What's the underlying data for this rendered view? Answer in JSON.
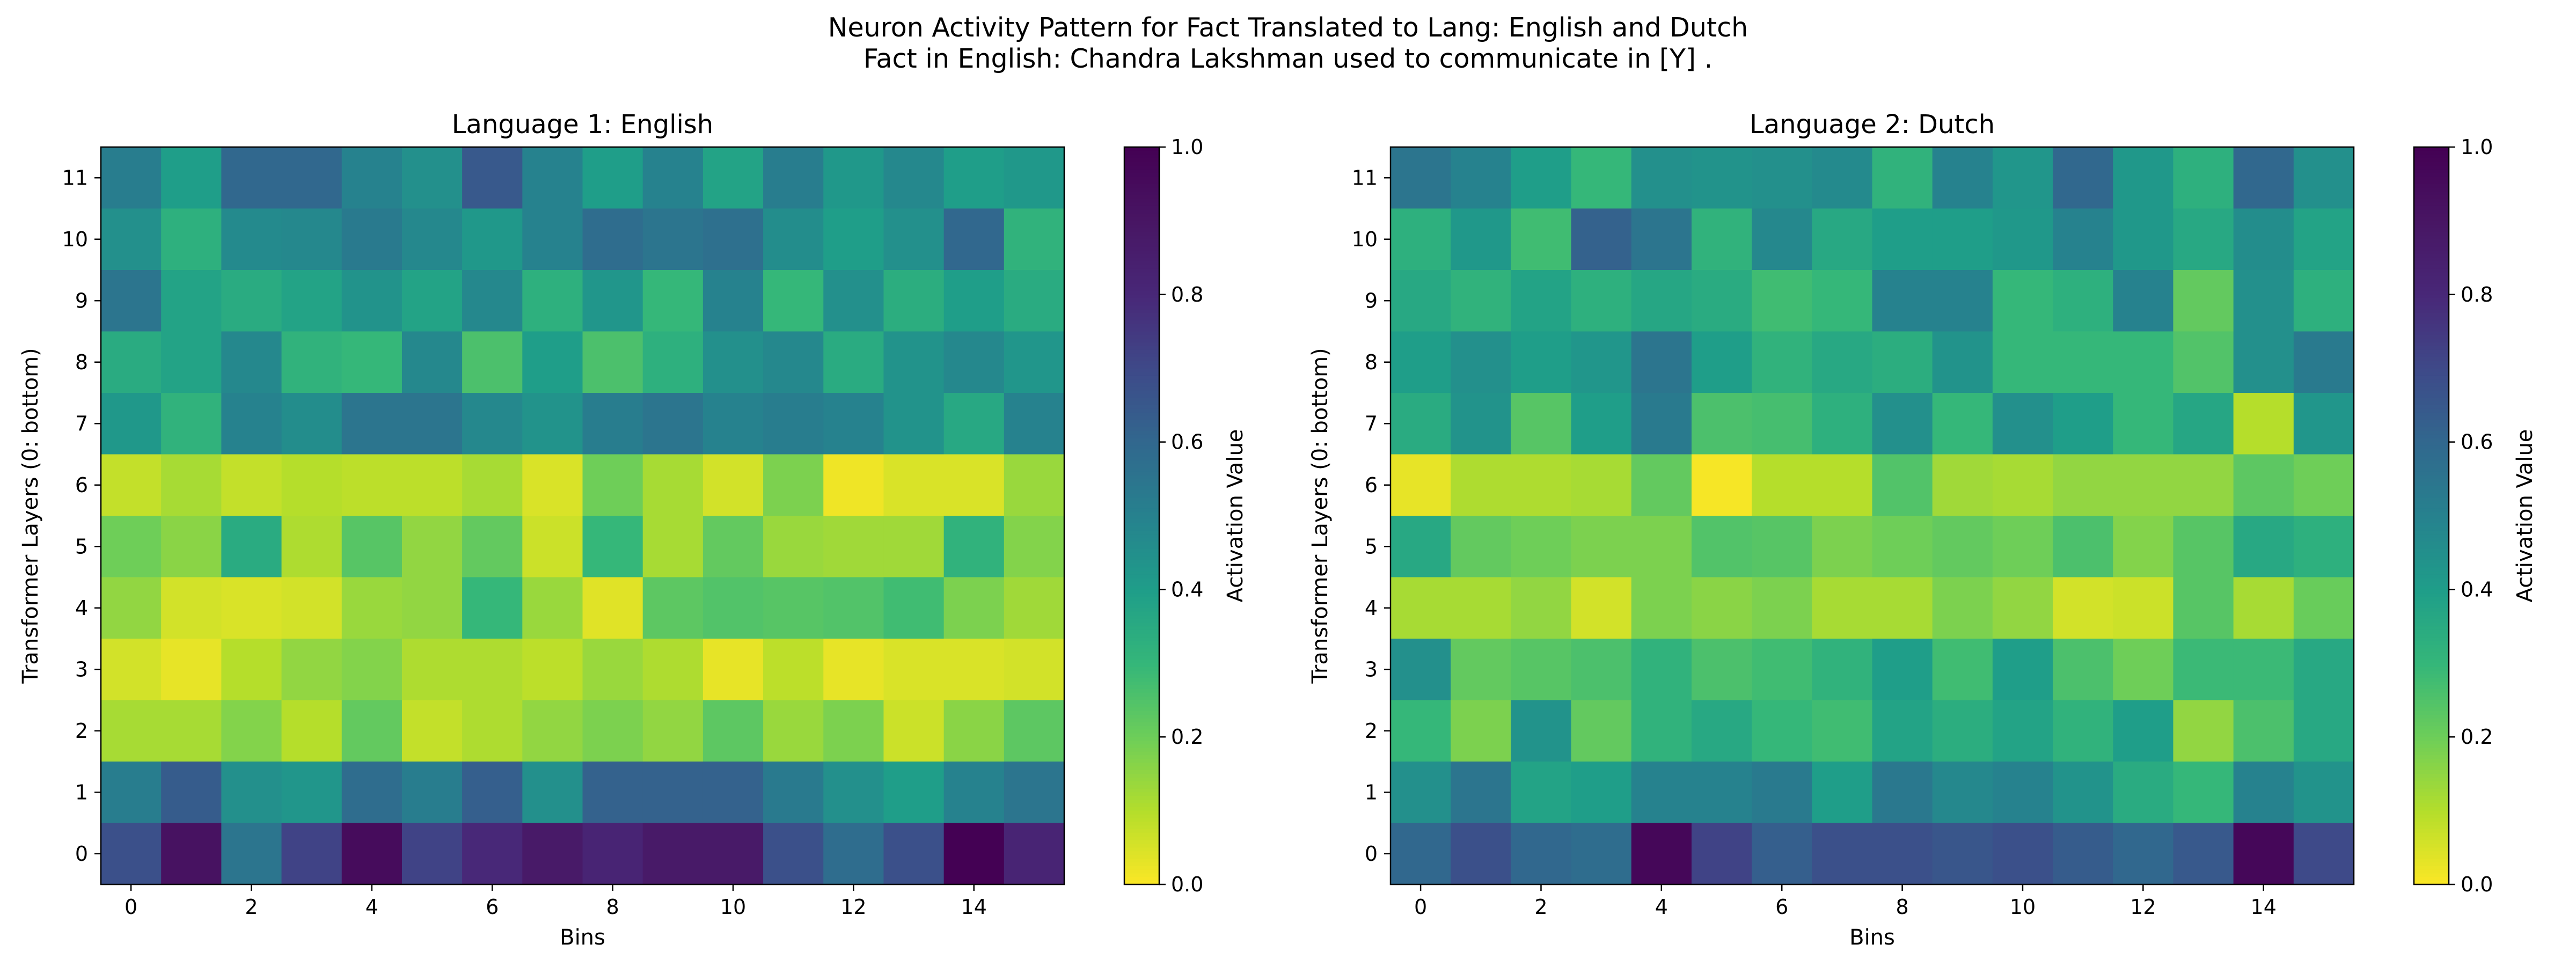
{
  "figure": {
    "title_line1": "Neuron Activity Pattern for Fact Translated to Lang: English and Dutch",
    "title_line2": "Fact in English: Chandra Lakshman used to communicate in [Y] ."
  },
  "chart_data": [
    {
      "type": "heatmap",
      "title": "Language 1: English",
      "xlabel": "Bins",
      "ylabel": "Transformer Layers (0: bottom)",
      "colorbar_label": "Activation Value",
      "colormap": "viridis_r",
      "vmin": 0.0,
      "vmax": 1.0,
      "x_ticks": [
        0,
        2,
        4,
        6,
        8,
        10,
        12,
        14
      ],
      "y_ticks": [
        0,
        1,
        2,
        3,
        4,
        5,
        6,
        7,
        8,
        9,
        10,
        11
      ],
      "colorbar_ticks": [
        "0.0",
        "0.2",
        "0.4",
        "0.6",
        "0.8",
        "1.0"
      ],
      "rows_top_to_bottom_layer_11_to_0": [
        [
          0.52,
          0.4,
          0.6,
          0.6,
          0.5,
          0.45,
          0.65,
          0.5,
          0.4,
          0.5,
          0.38,
          0.52,
          0.42,
          0.48,
          0.4,
          0.42
        ],
        [
          0.45,
          0.33,
          0.47,
          0.48,
          0.53,
          0.48,
          0.42,
          0.5,
          0.58,
          0.55,
          0.57,
          0.46,
          0.4,
          0.45,
          0.6,
          0.32
        ],
        [
          0.55,
          0.38,
          0.35,
          0.38,
          0.44,
          0.38,
          0.48,
          0.33,
          0.43,
          0.3,
          0.5,
          0.3,
          0.45,
          0.34,
          0.4,
          0.35
        ],
        [
          0.35,
          0.38,
          0.48,
          0.32,
          0.3,
          0.48,
          0.26,
          0.4,
          0.26,
          0.33,
          0.45,
          0.48,
          0.35,
          0.44,
          0.48,
          0.43
        ],
        [
          0.42,
          0.32,
          0.5,
          0.46,
          0.55,
          0.55,
          0.48,
          0.44,
          0.52,
          0.55,
          0.5,
          0.52,
          0.5,
          0.44,
          0.36,
          0.5
        ],
        [
          0.08,
          0.12,
          0.08,
          0.1,
          0.09,
          0.09,
          0.12,
          0.05,
          0.2,
          0.12,
          0.06,
          0.18,
          0.02,
          0.05,
          0.05,
          0.14
        ],
        [
          0.2,
          0.16,
          0.35,
          0.11,
          0.24,
          0.15,
          0.22,
          0.07,
          0.3,
          0.12,
          0.22,
          0.14,
          0.13,
          0.13,
          0.32,
          0.17
        ],
        [
          0.15,
          0.06,
          0.05,
          0.06,
          0.14,
          0.15,
          0.3,
          0.14,
          0.04,
          0.23,
          0.25,
          0.24,
          0.25,
          0.28,
          0.18,
          0.13
        ],
        [
          0.06,
          0.03,
          0.1,
          0.15,
          0.17,
          0.11,
          0.11,
          0.09,
          0.14,
          0.11,
          0.03,
          0.09,
          0.03,
          0.05,
          0.05,
          0.06
        ],
        [
          0.12,
          0.12,
          0.17,
          0.1,
          0.22,
          0.08,
          0.11,
          0.15,
          0.18,
          0.15,
          0.23,
          0.14,
          0.18,
          0.07,
          0.16,
          0.23
        ],
        [
          0.52,
          0.64,
          0.45,
          0.43,
          0.58,
          0.52,
          0.63,
          0.45,
          0.62,
          0.62,
          0.62,
          0.53,
          0.45,
          0.4,
          0.5,
          0.55
        ],
        [
          0.68,
          0.92,
          0.55,
          0.72,
          0.95,
          0.72,
          0.8,
          0.88,
          0.82,
          0.88,
          0.88,
          0.68,
          0.58,
          0.68,
          1.0,
          0.82
        ]
      ]
    },
    {
      "type": "heatmap",
      "title": "Language 2: Dutch",
      "xlabel": "Bins",
      "ylabel": "Transformer Layers (0: bottom)",
      "colorbar_label": "Activation Value",
      "colormap": "viridis_r",
      "vmin": 0.0,
      "vmax": 1.0,
      "x_ticks": [
        0,
        2,
        4,
        6,
        8,
        10,
        12,
        14
      ],
      "y_ticks": [
        0,
        1,
        2,
        3,
        4,
        5,
        6,
        7,
        8,
        9,
        10,
        11
      ],
      "colorbar_ticks": [
        "0.0",
        "0.2",
        "0.4",
        "0.6",
        "0.8",
        "1.0"
      ],
      "rows_top_to_bottom_layer_11_to_0": [
        [
          0.55,
          0.5,
          0.4,
          0.3,
          0.45,
          0.44,
          0.45,
          0.47,
          0.32,
          0.5,
          0.43,
          0.6,
          0.42,
          0.33,
          0.6,
          0.45
        ],
        [
          0.33,
          0.42,
          0.28,
          0.62,
          0.55,
          0.32,
          0.48,
          0.36,
          0.4,
          0.4,
          0.42,
          0.5,
          0.42,
          0.36,
          0.46,
          0.38
        ],
        [
          0.36,
          0.32,
          0.38,
          0.33,
          0.37,
          0.35,
          0.28,
          0.3,
          0.5,
          0.5,
          0.3,
          0.33,
          0.5,
          0.22,
          0.45,
          0.33
        ],
        [
          0.4,
          0.45,
          0.4,
          0.43,
          0.55,
          0.4,
          0.32,
          0.36,
          0.34,
          0.44,
          0.3,
          0.3,
          0.3,
          0.25,
          0.45,
          0.53
        ],
        [
          0.35,
          0.44,
          0.24,
          0.4,
          0.53,
          0.26,
          0.27,
          0.33,
          0.45,
          0.3,
          0.45,
          0.4,
          0.3,
          0.37,
          0.1,
          0.43
        ],
        [
          0.03,
          0.11,
          0.11,
          0.12,
          0.22,
          0.01,
          0.1,
          0.1,
          0.25,
          0.13,
          0.12,
          0.15,
          0.15,
          0.15,
          0.23,
          0.2
        ],
        [
          0.36,
          0.22,
          0.2,
          0.18,
          0.18,
          0.25,
          0.24,
          0.18,
          0.2,
          0.22,
          0.2,
          0.26,
          0.17,
          0.24,
          0.36,
          0.33
        ],
        [
          0.12,
          0.12,
          0.15,
          0.06,
          0.18,
          0.16,
          0.18,
          0.12,
          0.12,
          0.18,
          0.15,
          0.06,
          0.07,
          0.24,
          0.12,
          0.21
        ],
        [
          0.45,
          0.22,
          0.24,
          0.26,
          0.32,
          0.26,
          0.28,
          0.32,
          0.4,
          0.28,
          0.4,
          0.26,
          0.2,
          0.29,
          0.29,
          0.36
        ],
        [
          0.3,
          0.18,
          0.44,
          0.22,
          0.32,
          0.36,
          0.3,
          0.28,
          0.38,
          0.34,
          0.38,
          0.32,
          0.4,
          0.15,
          0.26,
          0.36
        ],
        [
          0.45,
          0.55,
          0.38,
          0.4,
          0.5,
          0.5,
          0.53,
          0.4,
          0.54,
          0.48,
          0.5,
          0.44,
          0.35,
          0.3,
          0.5,
          0.44
        ],
        [
          0.6,
          0.68,
          0.6,
          0.58,
          0.97,
          0.72,
          0.63,
          0.68,
          0.68,
          0.66,
          0.68,
          0.64,
          0.6,
          0.65,
          0.97,
          0.7
        ]
      ]
    }
  ]
}
